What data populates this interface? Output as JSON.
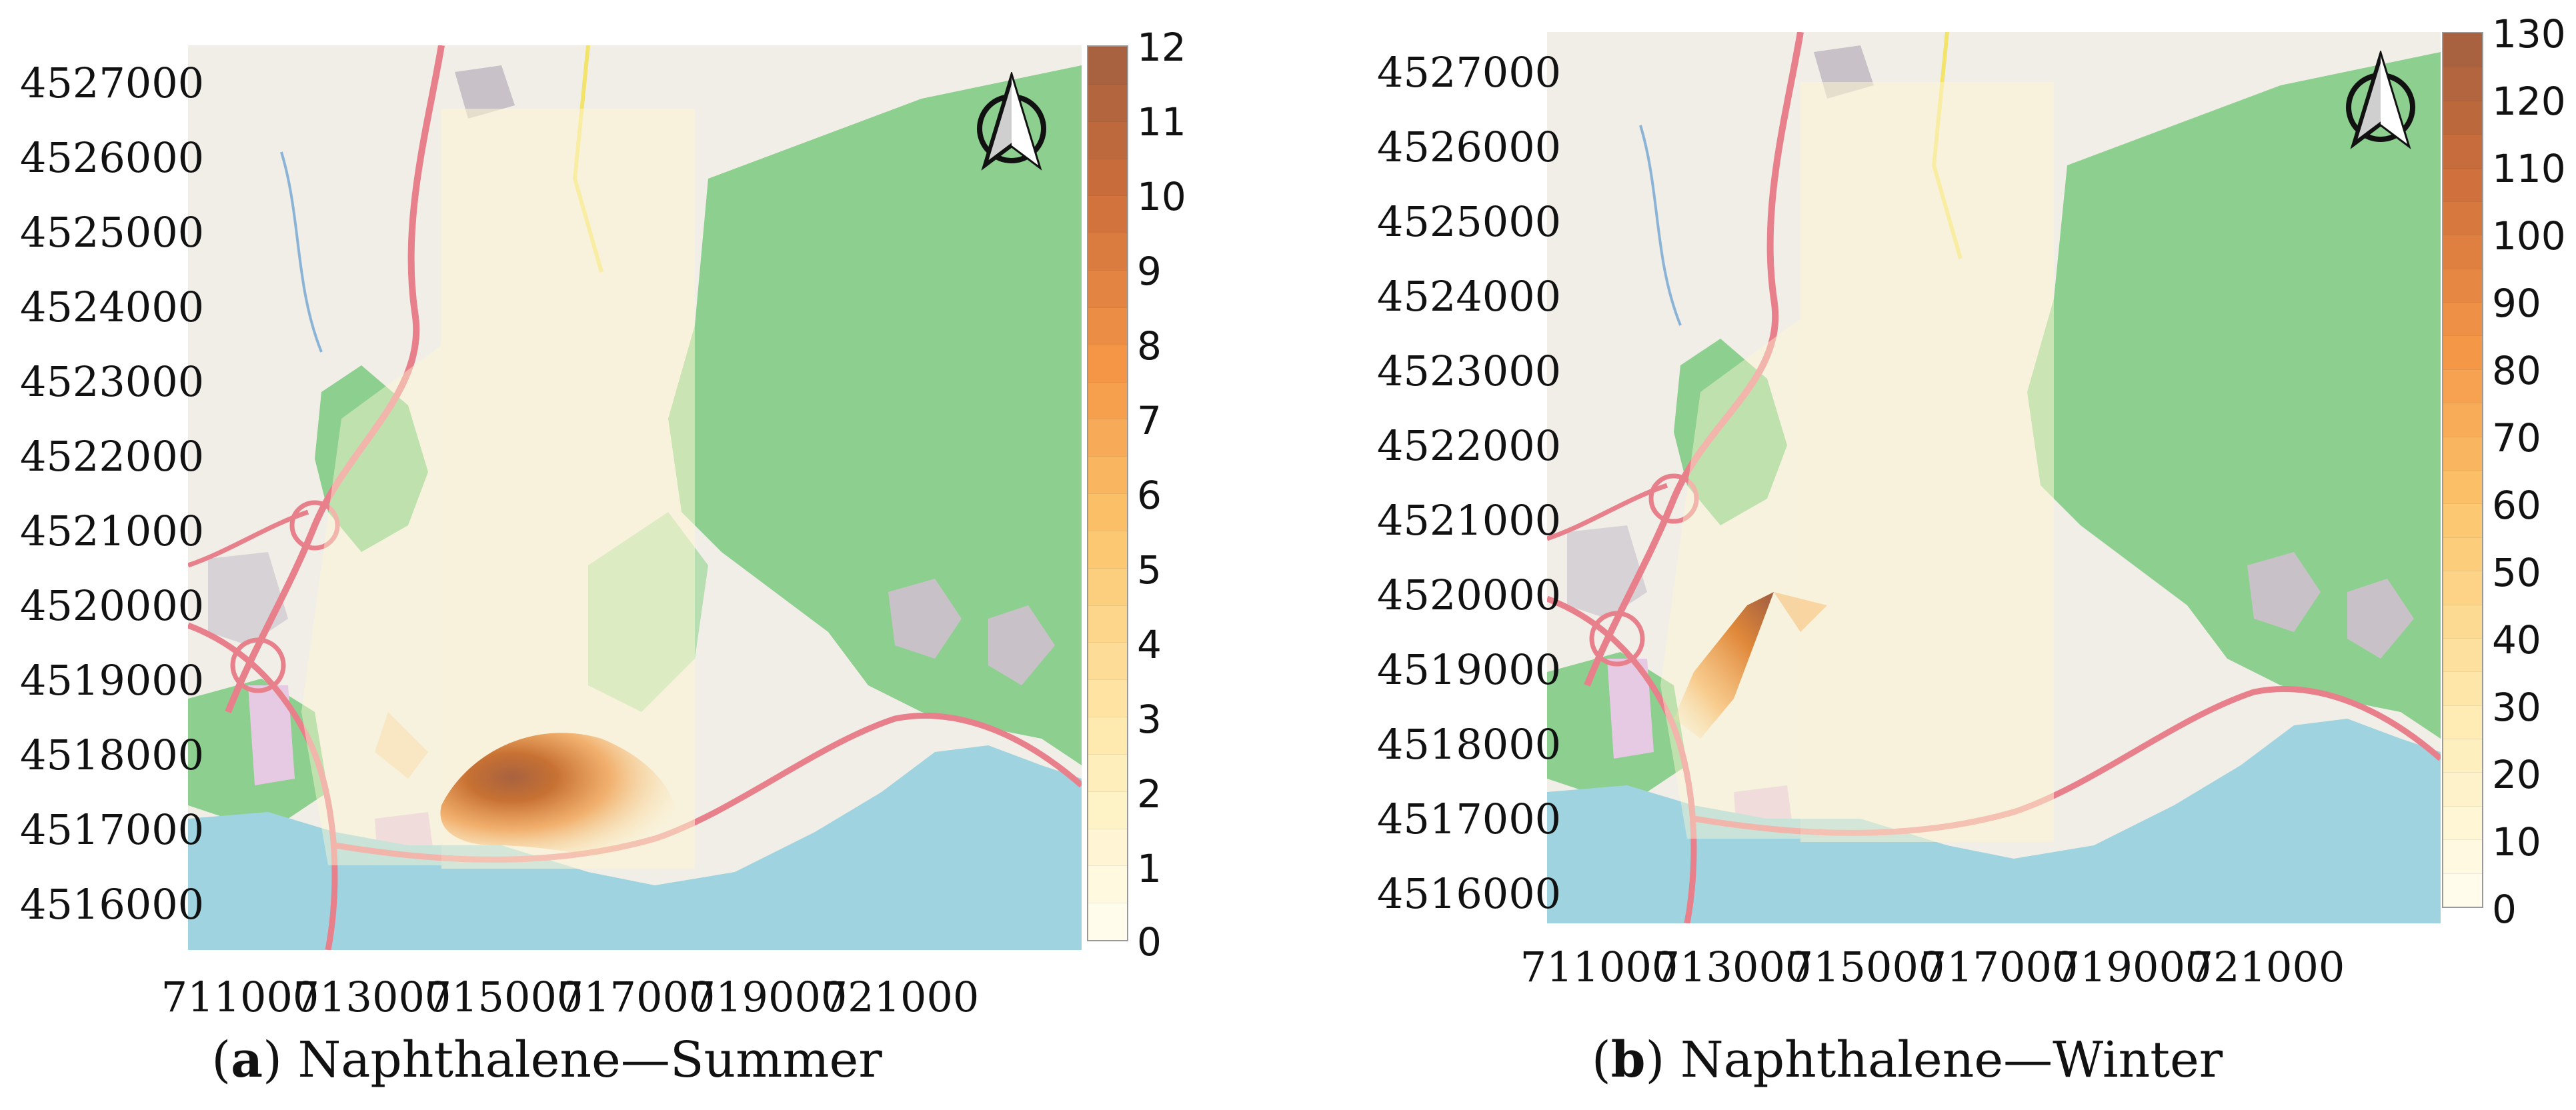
{
  "panels": [
    {
      "id": "a",
      "caption_letter": "a",
      "caption_text": "Naphthalene—Summer",
      "y_ticks": [
        "4527000",
        "4526000",
        "4525000",
        "4524000",
        "4523000",
        "4522000",
        "4521000",
        "4520000",
        "4519000",
        "4518000",
        "4517000",
        "4516000"
      ],
      "x_ticks": [
        "711000",
        "713000",
        "715000",
        "717000",
        "719000",
        "721000"
      ],
      "colorbar_ticks": [
        "12",
        "11",
        "10",
        "9",
        "8",
        "7",
        "6",
        "5",
        "4",
        "3",
        "2",
        "1",
        "0"
      ],
      "colorbar_max": 12,
      "plume": "southeast of source near coast, max around 12"
    },
    {
      "id": "b",
      "caption_letter": "b",
      "caption_text": "Naphthalene—Winter",
      "y_ticks": [
        "4527000",
        "4526000",
        "4525000",
        "4524000",
        "4523000",
        "4522000",
        "4521000",
        "4520000",
        "4519000",
        "4518000",
        "4517000",
        "4516000"
      ],
      "x_ticks": [
        "711000",
        "713000",
        "715000",
        "717000",
        "719000",
        "721000"
      ],
      "colorbar_ticks": [
        "130",
        "120",
        "110",
        "100",
        "90",
        "80",
        "70",
        "60",
        "50",
        "40",
        "30",
        "20",
        "10",
        "0"
      ],
      "colorbar_max": 130,
      "plume": "northwest-oriented narrow plume"
    }
  ],
  "colors": {
    "sea": "#9fd3df",
    "forest": "#8ccf8f",
    "land": "#f1eee8",
    "road": "#e8808c",
    "plume_low": "#fdf6d2",
    "plume_high": "#a8623f"
  },
  "icons": [
    "north-arrow-icon"
  ]
}
